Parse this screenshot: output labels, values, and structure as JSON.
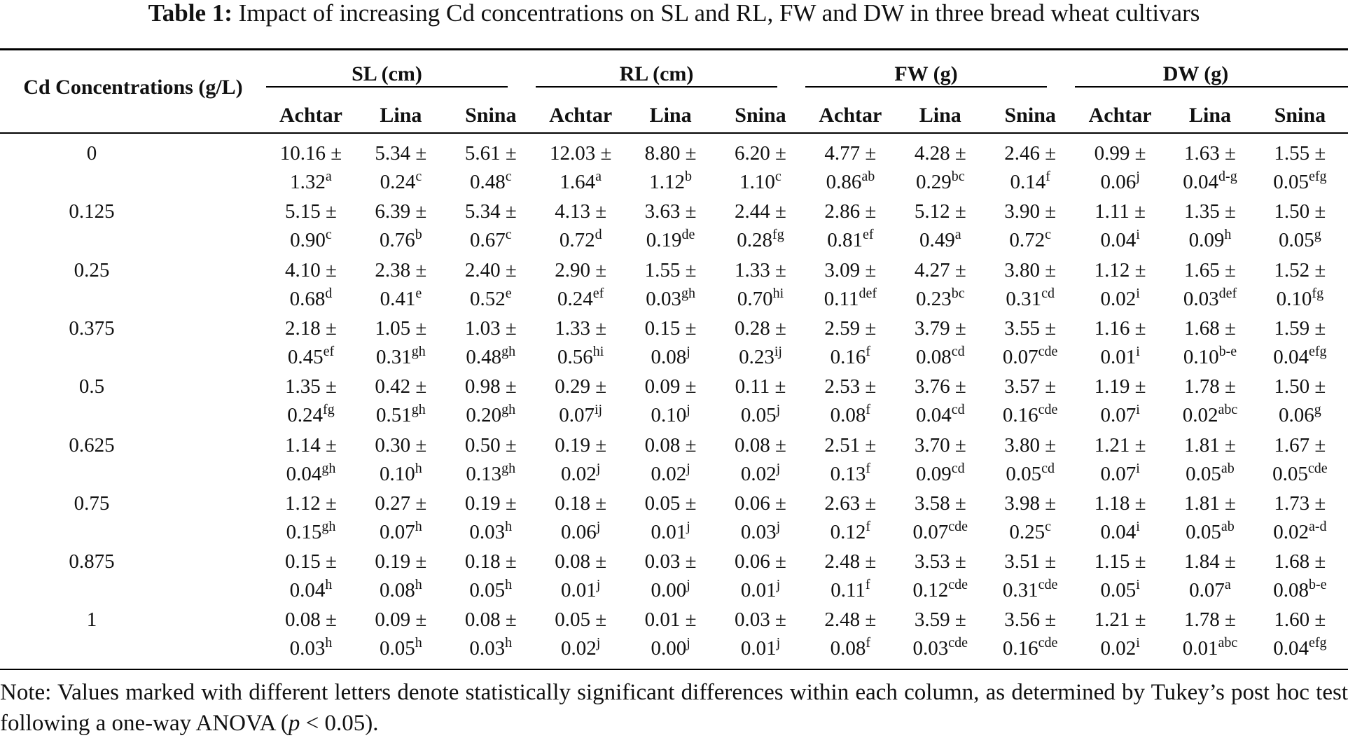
{
  "table": {
    "caption_label": "Table 1:",
    "caption_text": "Impact of increasing Cd concentrations on SL and RL, FW and DW in three bread wheat cultivars",
    "row_header": "Cd Concentrations (g/L)",
    "groups": [
      "SL (cm)",
      "RL (cm)",
      "FW (g)",
      "DW (g)"
    ],
    "cultivars": [
      "Achtar",
      "Lina",
      "Snina"
    ],
    "rows": [
      {
        "conc": "0",
        "cells": [
          {
            "v": "10.16 ±",
            "sd": "1.32",
            "sup": "a"
          },
          {
            "v": "5.34 ±",
            "sd": "0.24",
            "sup": "c"
          },
          {
            "v": "5.61 ±",
            "sd": "0.48",
            "sup": "c"
          },
          {
            "v": "12.03 ±",
            "sd": "1.64",
            "sup": "a"
          },
          {
            "v": "8.80 ±",
            "sd": "1.12",
            "sup": "b"
          },
          {
            "v": "6.20 ±",
            "sd": "1.10",
            "sup": "c"
          },
          {
            "v": "4.77 ±",
            "sd": "0.86",
            "sup": "ab"
          },
          {
            "v": "4.28 ±",
            "sd": "0.29",
            "sup": "bc"
          },
          {
            "v": "2.46 ±",
            "sd": "0.14",
            "sup": "f"
          },
          {
            "v": "0.99 ±",
            "sd": "0.06",
            "sup": "j"
          },
          {
            "v": "1.63 ±",
            "sd": "0.04",
            "sup": "d-g"
          },
          {
            "v": "1.55 ±",
            "sd": "0.05",
            "sup": "efg"
          }
        ]
      },
      {
        "conc": "0.125",
        "cells": [
          {
            "v": "5.15 ±",
            "sd": "0.90",
            "sup": "c"
          },
          {
            "v": "6.39 ±",
            "sd": "0.76",
            "sup": "b"
          },
          {
            "v": "5.34 ±",
            "sd": "0.67",
            "sup": "c"
          },
          {
            "v": "4.13 ±",
            "sd": "0.72",
            "sup": "d"
          },
          {
            "v": "3.63 ±",
            "sd": "0.19",
            "sup": "de"
          },
          {
            "v": "2.44 ±",
            "sd": "0.28",
            "sup": "fg"
          },
          {
            "v": "2.86 ±",
            "sd": "0.81",
            "sup": "ef"
          },
          {
            "v": "5.12 ±",
            "sd": "0.49",
            "sup": "a"
          },
          {
            "v": "3.90 ±",
            "sd": "0.72",
            "sup": "c"
          },
          {
            "v": "1.11 ±",
            "sd": "0.04",
            "sup": "i"
          },
          {
            "v": "1.35 ±",
            "sd": "0.09",
            "sup": "h"
          },
          {
            "v": "1.50 ±",
            "sd": "0.05",
            "sup": "g"
          }
        ]
      },
      {
        "conc": "0.25",
        "cells": [
          {
            "v": "4.10 ±",
            "sd": "0.68",
            "sup": "d"
          },
          {
            "v": "2.38 ±",
            "sd": "0.41",
            "sup": "e"
          },
          {
            "v": "2.40 ±",
            "sd": "0.52",
            "sup": "e"
          },
          {
            "v": "2.90 ±",
            "sd": "0.24",
            "sup": "ef"
          },
          {
            "v": "1.55 ±",
            "sd": "0.03",
            "sup": "gh"
          },
          {
            "v": "1.33 ±",
            "sd": "0.70",
            "sup": "hi"
          },
          {
            "v": "3.09 ±",
            "sd": "0.11",
            "sup": "def"
          },
          {
            "v": "4.27 ±",
            "sd": "0.23",
            "sup": "bc"
          },
          {
            "v": "3.80 ±",
            "sd": "0.31",
            "sup": "cd"
          },
          {
            "v": "1.12 ±",
            "sd": "0.02",
            "sup": "i"
          },
          {
            "v": "1.65 ±",
            "sd": "0.03",
            "sup": "def"
          },
          {
            "v": "1.52 ±",
            "sd": "0.10",
            "sup": "fg"
          }
        ]
      },
      {
        "conc": "0.375",
        "cells": [
          {
            "v": "2.18 ±",
            "sd": "0.45",
            "sup": "ef"
          },
          {
            "v": "1.05 ±",
            "sd": "0.31",
            "sup": "gh"
          },
          {
            "v": "1.03 ±",
            "sd": "0.48",
            "sup": "gh"
          },
          {
            "v": "1.33 ±",
            "sd": "0.56",
            "sup": "hi"
          },
          {
            "v": "0.15 ±",
            "sd": "0.08",
            "sup": "j"
          },
          {
            "v": "0.28 ±",
            "sd": "0.23",
            "sup": "ij"
          },
          {
            "v": "2.59 ±",
            "sd": "0.16",
            "sup": "f"
          },
          {
            "v": "3.79 ±",
            "sd": "0.08",
            "sup": "cd"
          },
          {
            "v": "3.55 ±",
            "sd": "0.07",
            "sup": "cde"
          },
          {
            "v": "1.16 ±",
            "sd": "0.01",
            "sup": "i"
          },
          {
            "v": "1.68 ±",
            "sd": "0.10",
            "sup": "b-e"
          },
          {
            "v": "1.59 ±",
            "sd": "0.04",
            "sup": "efg"
          }
        ]
      },
      {
        "conc": "0.5",
        "cells": [
          {
            "v": "1.35 ±",
            "sd": "0.24",
            "sup": "fg"
          },
          {
            "v": "0.42 ±",
            "sd": "0.51",
            "sup": "gh"
          },
          {
            "v": "0.98 ±",
            "sd": "0.20",
            "sup": "gh"
          },
          {
            "v": "0.29 ±",
            "sd": "0.07",
            "sup": "ij"
          },
          {
            "v": "0.09 ±",
            "sd": "0.10",
            "sup": "j"
          },
          {
            "v": "0.11 ±",
            "sd": "0.05",
            "sup": "j"
          },
          {
            "v": "2.53 ±",
            "sd": "0.08",
            "sup": "f"
          },
          {
            "v": "3.76 ±",
            "sd": "0.04",
            "sup": "cd"
          },
          {
            "v": "3.57 ±",
            "sd": "0.16",
            "sup": "cde"
          },
          {
            "v": "1.19 ±",
            "sd": "0.07",
            "sup": "i"
          },
          {
            "v": "1.78 ±",
            "sd": "0.02",
            "sup": "abc"
          },
          {
            "v": "1.50 ±",
            "sd": "0.06",
            "sup": "g"
          }
        ]
      },
      {
        "conc": "0.625",
        "cells": [
          {
            "v": "1.14 ±",
            "sd": "0.04",
            "sup": "gh"
          },
          {
            "v": "0.30 ±",
            "sd": "0.10",
            "sup": "h"
          },
          {
            "v": "0.50 ±",
            "sd": "0.13",
            "sup": "gh"
          },
          {
            "v": "0.19 ±",
            "sd": "0.02",
            "sup": "j"
          },
          {
            "v": "0.08 ±",
            "sd": "0.02",
            "sup": "j"
          },
          {
            "v": "0.08 ±",
            "sd": "0.02",
            "sup": "j"
          },
          {
            "v": "2.51 ±",
            "sd": "0.13",
            "sup": "f"
          },
          {
            "v": "3.70 ±",
            "sd": "0.09",
            "sup": "cd"
          },
          {
            "v": "3.80 ±",
            "sd": "0.05",
            "sup": "cd"
          },
          {
            "v": "1.21 ±",
            "sd": "0.07",
            "sup": "i"
          },
          {
            "v": "1.81 ±",
            "sd": "0.05",
            "sup": "ab"
          },
          {
            "v": "1.67 ±",
            "sd": "0.05",
            "sup": "cde"
          }
        ]
      },
      {
        "conc": "0.75",
        "cells": [
          {
            "v": "1.12 ±",
            "sd": "0.15",
            "sup": "gh"
          },
          {
            "v": "0.27 ±",
            "sd": "0.07",
            "sup": "h"
          },
          {
            "v": "0.19 ±",
            "sd": "0.03",
            "sup": "h"
          },
          {
            "v": "0.18 ±",
            "sd": "0.06",
            "sup": "j"
          },
          {
            "v": "0.05 ±",
            "sd": "0.01",
            "sup": "j"
          },
          {
            "v": "0.06 ±",
            "sd": "0.03",
            "sup": "j"
          },
          {
            "v": "2.63 ±",
            "sd": "0.12",
            "sup": "f"
          },
          {
            "v": "3.58 ±",
            "sd": "0.07",
            "sup": "cde"
          },
          {
            "v": "3.98 ±",
            "sd": "0.25",
            "sup": "c"
          },
          {
            "v": "1.18 ±",
            "sd": "0.04",
            "sup": "i"
          },
          {
            "v": "1.81 ±",
            "sd": "0.05",
            "sup": "ab"
          },
          {
            "v": "1.73 ±",
            "sd": "0.02",
            "sup": "a-d"
          }
        ]
      },
      {
        "conc": "0.875",
        "cells": [
          {
            "v": "0.15 ±",
            "sd": "0.04",
            "sup": "h"
          },
          {
            "v": "0.19 ±",
            "sd": "0.08",
            "sup": "h"
          },
          {
            "v": "0.18 ±",
            "sd": "0.05",
            "sup": "h"
          },
          {
            "v": "0.08 ±",
            "sd": "0.01",
            "sup": "j"
          },
          {
            "v": "0.03 ±",
            "sd": "0.00",
            "sup": "j"
          },
          {
            "v": "0.06 ±",
            "sd": "0.01",
            "sup": "j"
          },
          {
            "v": "2.48 ±",
            "sd": "0.11",
            "sup": "f"
          },
          {
            "v": "3.53 ±",
            "sd": "0.12",
            "sup": "cde"
          },
          {
            "v": "3.51 ±",
            "sd": "0.31",
            "sup": "cde"
          },
          {
            "v": "1.15 ±",
            "sd": "0.05",
            "sup": "i"
          },
          {
            "v": "1.84 ±",
            "sd": "0.07",
            "sup": "a"
          },
          {
            "v": "1.68 ±",
            "sd": "0.08",
            "sup": "b-e"
          }
        ]
      },
      {
        "conc": "1",
        "cells": [
          {
            "v": "0.08 ±",
            "sd": "0.03",
            "sup": "h"
          },
          {
            "v": "0.09 ±",
            "sd": "0.05",
            "sup": "h"
          },
          {
            "v": "0.08 ±",
            "sd": "0.03",
            "sup": "h"
          },
          {
            "v": "0.05 ±",
            "sd": "0.02",
            "sup": "j"
          },
          {
            "v": "0.01 ±",
            "sd": "0.00",
            "sup": "j"
          },
          {
            "v": "0.03 ±",
            "sd": "0.01",
            "sup": "j"
          },
          {
            "v": "2.48 ±",
            "sd": "0.08",
            "sup": "f"
          },
          {
            "v": "3.59 ±",
            "sd": "0.03",
            "sup": "cde"
          },
          {
            "v": "3.56 ±",
            "sd": "0.16",
            "sup": "cde"
          },
          {
            "v": "1.21 ±",
            "sd": "0.02",
            "sup": "i"
          },
          {
            "v": "1.78 ±",
            "sd": "0.01",
            "sup": "abc"
          },
          {
            "v": "1.60 ±",
            "sd": "0.04",
            "sup": "efg"
          }
        ]
      }
    ],
    "note_before_p": "Note: Values marked with different letters denote statistically significant differences within each column, as determined by Tukey’s post hoc test following a one-way ANOVA (",
    "note_p": "p",
    "note_after_p": " < 0.05)."
  }
}
